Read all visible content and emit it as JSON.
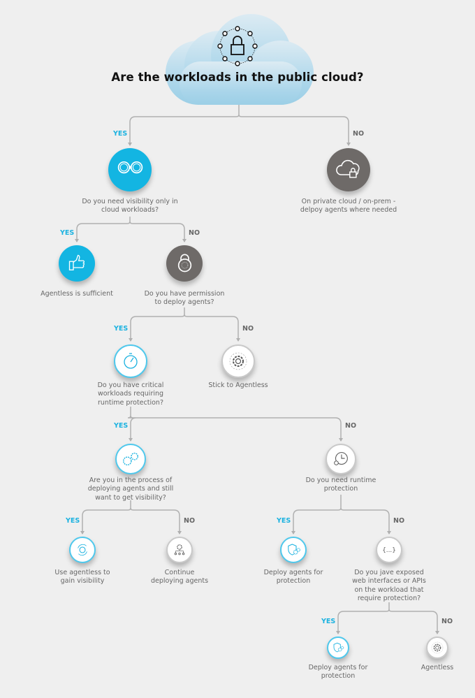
{
  "title": "Are the workloads in the public cloud?",
  "colors": {
    "accent": "#13b5e2",
    "dark": "#6e6a68",
    "line": "#b0b0b0",
    "background": "#efefef"
  },
  "branch_labels": {
    "yes": "YES",
    "no": "NO"
  },
  "nodes": [
    {
      "icon": "binoculars-icon",
      "lines": [
        "Do you need visibility only in",
        "cloud workloads?"
      ]
    },
    {
      "icon": "cloud-lock-icon",
      "lines": [
        "On private cloud / on-prem -",
        "delpoy agents where needed"
      ]
    },
    {
      "icon": "thumbs-up-icon",
      "lines": [
        "Agentless is sufficient"
      ]
    },
    {
      "icon": "padlock-icon",
      "lines": [
        "Do you have permission",
        "to deploy agents?"
      ]
    },
    {
      "icon": "stopwatch-icon",
      "lines": [
        "Do you have critical",
        "workloads requiring",
        "runtime protection?"
      ]
    },
    {
      "icon": "gear-icon",
      "lines": [
        "Stick to Agentless"
      ]
    },
    {
      "icon": "gears-icon",
      "lines": [
        "Are you in the process of",
        "deploying agents and still",
        "want to get visibility?"
      ]
    },
    {
      "icon": "clock-icon",
      "lines": [
        "Do you need runtime",
        "protection"
      ]
    },
    {
      "icon": "refresh-icon",
      "lines": [
        "Use agentless to",
        "gain visibility"
      ]
    },
    {
      "icon": "gear-network-icon",
      "lines": [
        "Continue",
        "deploying agents"
      ]
    },
    {
      "icon": "shield-gears-icon",
      "lines": [
        "Deploy agents for",
        "protection"
      ]
    },
    {
      "icon": "braces-icon",
      "lines": [
        "Do you jave exposed",
        "web interfaces or APIs",
        "on the workload that",
        "require protection?"
      ]
    },
    {
      "icon": "shield-gears-icon",
      "lines": [
        "Deploy agents for",
        "protection"
      ]
    },
    {
      "icon": "gear-icon",
      "lines": [
        "Agentless"
      ]
    }
  ]
}
